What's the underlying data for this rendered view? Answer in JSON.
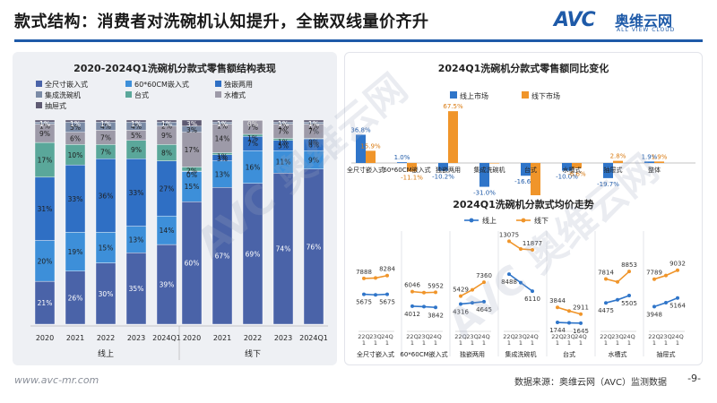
{
  "header": {
    "title": "款式结构：消费者对洗碗机认知提升，全嵌双线量价齐升",
    "logo_mark": "AVC",
    "logo_cn": "奥维云网",
    "logo_en": "ALL VIEW CLOUD"
  },
  "footer": {
    "url": "www.avc-mr.com",
    "source": "数据来源：奥维云网（AVC）监测数据",
    "page": "-9-"
  },
  "watermark": {
    "text": "AVC 奥维云网"
  },
  "colors": {
    "全尺寸嵌入式": "#4a63a8",
    "60*60CM嵌入式": "#3d8fd9",
    "独嵌两用": "#2f6fc4",
    "集成洗碗机": "#7b8ba6",
    "台式": "#5aa79a",
    "水槽式": "#9d9aa8",
    "抽屉式": "#5e5a72",
    "online": "#2f75c9",
    "offline": "#f0952a"
  },
  "chart_data": [
    {
      "type": "bar",
      "stacked": true,
      "title": "2020-2024Q1洗碗机分款式零售额结构表现",
      "legend_order": [
        "全尺寸嵌入式",
        "60*60CM嵌入式",
        "独嵌两用",
        "集成洗碗机",
        "台式",
        "水槽式",
        "抽屉式"
      ],
      "stack_order": [
        "全尺寸嵌入式",
        "60*60CM嵌入式",
        "独嵌两用",
        "台式",
        "水槽式",
        "集成洗碗机",
        "抽屉式"
      ],
      "groups": [
        "线上",
        "线下"
      ],
      "categories": [
        "2020",
        "2021",
        "2022",
        "2023",
        "2024Q1",
        "2020",
        "2021",
        "2022",
        "2023",
        "2024Q1"
      ],
      "series": [
        {
          "name": "全尺寸嵌入式",
          "values": [
            21,
            26,
            30,
            35,
            39,
            60,
            67,
            69,
            74,
            76
          ],
          "labels": [
            "21%",
            "26%",
            "30%",
            "35%",
            "39%",
            "60%",
            "67%",
            "69%",
            "74%",
            "76%"
          ]
        },
        {
          "name": "60*60CM嵌入式",
          "values": [
            20,
            19,
            15,
            13,
            14,
            15,
            13,
            16,
            11,
            9
          ],
          "labels": [
            "20%",
            "19%",
            "15%",
            "13%",
            "14%",
            "15%",
            "13%",
            "16%",
            "11%",
            "9%"
          ]
        },
        {
          "name": "独嵌两用",
          "values": [
            31,
            33,
            36,
            33,
            27,
            0,
            3,
            7,
            5,
            6
          ],
          "labels": [
            "31%",
            "33%",
            "36%",
            "33%",
            "27%",
            "0%",
            "3%",
            "7%",
            "5%",
            "6%"
          ]
        },
        {
          "name": "台式",
          "values": [
            17,
            10,
            7,
            9,
            8,
            2,
            1,
            1,
            1,
            0
          ],
          "labels": [
            "17%",
            "10%",
            "7%",
            "9%",
            "8%",
            "2%",
            "1%",
            "1%",
            "1%",
            "0%"
          ]
        },
        {
          "name": "水槽式",
          "values": [
            9,
            6,
            7,
            5,
            9,
            17,
            14,
            7,
            7,
            7
          ],
          "labels": [
            "9%",
            "6%",
            "7%",
            "5%",
            "9%",
            "17%",
            "14%",
            "7%",
            "7%",
            "7%"
          ]
        },
        {
          "name": "集成洗碗机",
          "values": [
            1,
            5,
            4,
            4,
            2,
            3,
            1,
            0,
            1,
            1
          ],
          "labels": [
            "1%",
            "5%",
            "4%",
            "4%",
            "2%",
            "3%",
            "1%",
            "0%",
            "1%",
            "1%"
          ]
        },
        {
          "name": "抽屉式",
          "values": [
            1,
            1,
            1,
            1,
            1,
            3,
            1,
            0,
            1,
            1
          ],
          "labels": [
            "1%",
            "1%",
            "1%",
            "1%",
            "1%",
            "3%",
            "1%",
            "0%",
            "1%",
            "1%"
          ]
        }
      ],
      "ylim": [
        0,
        100
      ]
    },
    {
      "type": "bar",
      "title": "2024Q1洗碗机分款式零售额同比变化",
      "categories": [
        "全尺寸嵌入式",
        "60*60CM嵌入式",
        "独嵌两用",
        "集成洗碗机",
        "台式",
        "水槽式",
        "抽屉式",
        "整体"
      ],
      "series": [
        {
          "name": "线上市场",
          "values": [
            36.8,
            1.0,
            -10.2,
            -31.0,
            -16.6,
            -10.0,
            -19.7,
            1.9
          ],
          "labels": [
            "36.8%",
            "1.0%",
            "-10.2%",
            "-31.0%",
            "-16.6%",
            "-10.0%",
            "-19.7%",
            "1.9%"
          ]
        },
        {
          "name": "线下市场",
          "values": [
            15.9,
            -11.1,
            67.5,
            0,
            -43.8,
            -6.6,
            2.8,
            1.9
          ],
          "labels": [
            "15.9%",
            "-11.1%",
            "67.5%",
            "",
            "-43.8%",
            "-6.6%",
            "2.8%",
            "1.9%"
          ]
        }
      ],
      "ylim": [
        -50,
        80
      ]
    },
    {
      "type": "line",
      "title": "2024Q1洗碗机分款式均价走势",
      "categories": [
        "全尺寸嵌入式",
        "60*60CM嵌入式",
        "独嵌两用",
        "集成洗碗机",
        "台式",
        "水槽式",
        "抽屉式"
      ],
      "x_ticks": [
        "22Q1",
        "23Q1",
        "24Q1"
      ],
      "x_tick_lines": [
        "22Q",
        "23Q",
        "24Q",
        "1",
        "1",
        "1"
      ],
      "series": [
        {
          "name": "线上",
          "values": [
            [
              5675,
              5593,
              5675
            ],
            [
              4012,
              3950,
              3842
            ],
            [
              4316,
              4480,
              4645
            ],
            [
              8488,
              7300,
              6110
            ],
            [
              1744,
              1680,
              1645
            ],
            [
              4475,
              4900,
              5505
            ],
            [
              3948,
              4500,
              5164
            ]
          ],
          "labels": [
            [
              "5675",
              "",
              "5675"
            ],
            [
              "4012",
              "",
              "3842"
            ],
            [
              "4316",
              "",
              "4645"
            ],
            [
              "8488",
              "",
              "6110"
            ],
            [
              "1744",
              "",
              "1645"
            ],
            [
              "4475",
              "",
              "5505"
            ],
            [
              "3948",
              "",
              "5164"
            ]
          ]
        },
        {
          "name": "线下",
          "values": [
            [
              7888,
              7950,
              8284
            ],
            [
              6046,
              5900,
              5952
            ],
            [
              5429,
              6300,
              7360
            ],
            [
              13075,
              12000,
              11877
            ],
            [
              3844,
              3350,
              2911
            ],
            [
              7814,
              7400,
              8853
            ],
            [
              7789,
              8300,
              9032
            ]
          ],
          "labels": [
            [
              "7888",
              "",
              "8284"
            ],
            [
              "6046",
              "",
              "5952"
            ],
            [
              "5429",
              "",
              "7360"
            ],
            [
              "13075",
              "",
              "11877"
            ],
            [
              "3844",
              "",
              "2911"
            ],
            [
              "7814",
              "",
              "8853"
            ],
            [
              "7789",
              "",
              "9032"
            ]
          ]
        }
      ]
    }
  ]
}
